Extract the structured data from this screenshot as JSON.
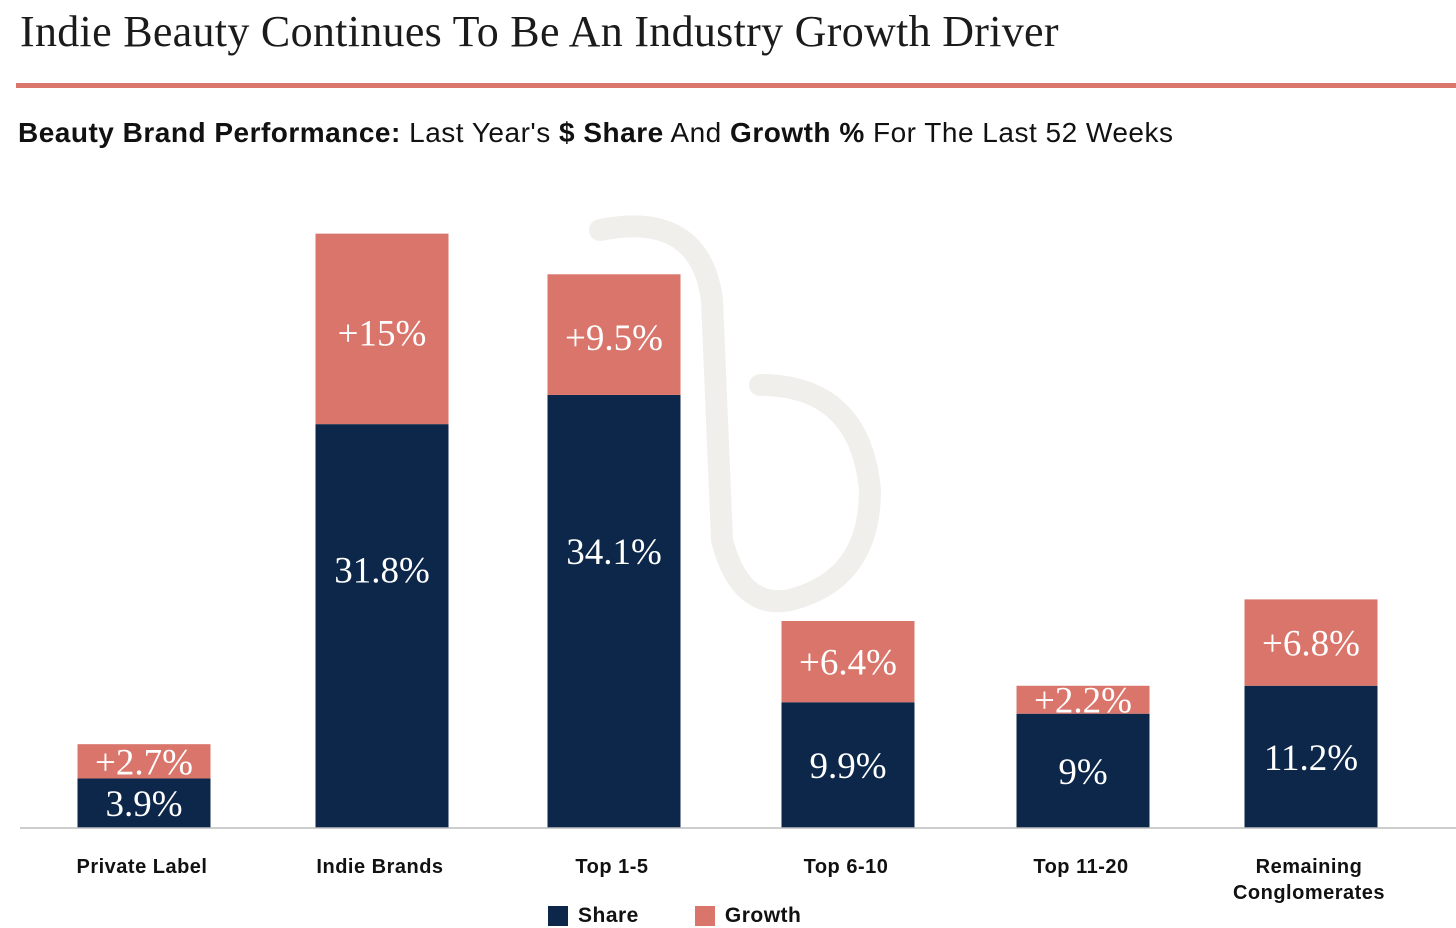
{
  "header": {
    "title": "Indie Beauty Continues To Be An Industry Growth Driver",
    "subtitle_bold_1": "Beauty Brand Performance:",
    "subtitle_text_1": " Last Year's ",
    "subtitle_bold_2": "$ Share",
    "subtitle_text_2": " And ",
    "subtitle_bold_3": "Growth %",
    "subtitle_text_3": " For The Last 52 Weeks"
  },
  "colors": {
    "share": "#0c2749",
    "growth": "#d9756b",
    "rule": "#d9756b",
    "watermark": "#f1efeb"
  },
  "chart_data": {
    "type": "bar",
    "stacked": true,
    "categories": [
      "Private Label",
      "Indie Brands",
      "Top 1-5",
      "Top 6-10",
      "Top 11-20",
      "Remaining Conglomerates"
    ],
    "category_lines": [
      [
        "Private Label"
      ],
      [
        "Indie Brands"
      ],
      [
        "Top 1-5"
      ],
      [
        "Top 6-10"
      ],
      [
        "Top 11-20"
      ],
      [
        "Remaining",
        "Conglomerates"
      ]
    ],
    "series": [
      {
        "name": "Share",
        "values": [
          3.9,
          31.8,
          34.1,
          9.9,
          9,
          11.2
        ],
        "labels": [
          "3.9%",
          "31.8%",
          "34.1%",
          "9.9%",
          "9%",
          "11.2%"
        ]
      },
      {
        "name": "Growth",
        "values": [
          2.7,
          15,
          9.5,
          6.4,
          2.2,
          6.8
        ],
        "labels": [
          "+2.7%",
          "+15%",
          "+9.5%",
          "+6.4%",
          "+2.2%",
          "+6.8%"
        ]
      }
    ],
    "legend_position": "bottom",
    "grid": false
  }
}
